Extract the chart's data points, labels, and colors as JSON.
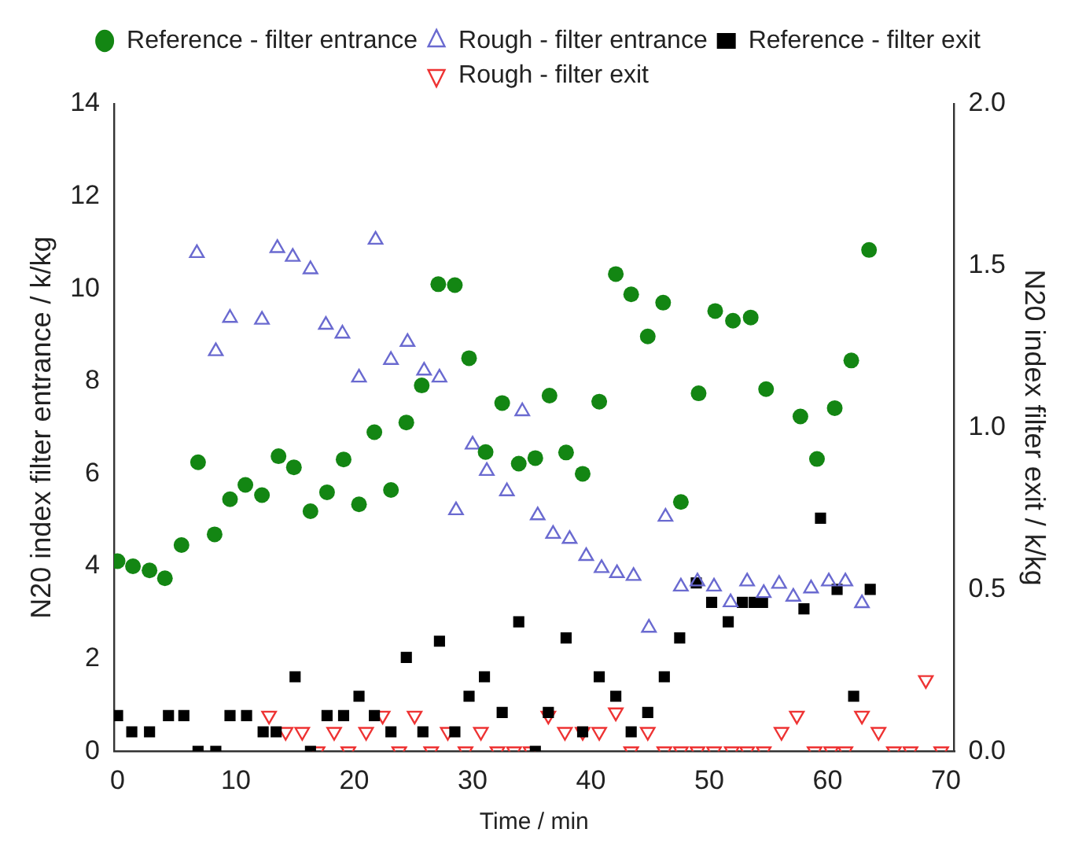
{
  "chart_data": {
    "type": "scatter",
    "xlabel": "Time / min",
    "ylabel": "N20 index filter entrance / k/kg",
    "y2label": "N20 index filter exit / k/kg",
    "xlim": [
      -0.3,
      70.7
    ],
    "xticks": [
      0,
      10,
      20,
      30,
      40,
      50,
      60,
      70
    ],
    "ylim": [
      0,
      14
    ],
    "yticks": [
      0,
      2,
      4,
      6,
      8,
      10,
      12,
      14
    ],
    "y2lim": [
      0,
      2
    ],
    "y2ticks": [
      {
        "value": 0,
        "label": "0.0"
      },
      {
        "value": 0.5,
        "label": "0.5"
      },
      {
        "value": 1,
        "label": "1.0"
      },
      {
        "value": 1.5,
        "label": "1.5"
      },
      {
        "value": 2,
        "label": "2.0"
      }
    ],
    "grid": false,
    "legend": "top",
    "series": [
      {
        "name": "Reference - filter entrance",
        "color": "#138613",
        "marker": "circle",
        "x": [
          0,
          1.3,
          2.7,
          4.0,
          5.4,
          6.8,
          8.2,
          9.5,
          10.8,
          12.2,
          13.6,
          14.9,
          16.3,
          17.7,
          19.1,
          20.4,
          21.7,
          23.1,
          24.4,
          25.7,
          27.1,
          28.5,
          29.7,
          31.1,
          32.5,
          33.9,
          35.3,
          36.5,
          37.9,
          39.3,
          40.7,
          42.1,
          43.4,
          44.8,
          46.1,
          47.6,
          49.1,
          50.5,
          52.0,
          53.5,
          54.8,
          57.7,
          59.1,
          60.6,
          62.0,
          63.5
        ],
        "values": [
          4.11,
          4.0,
          3.91,
          3.74,
          4.46,
          6.25,
          4.69,
          5.45,
          5.76,
          5.54,
          6.38,
          6.14,
          5.19,
          5.6,
          6.31,
          5.34,
          6.9,
          5.65,
          7.11,
          7.91,
          10.1,
          10.08,
          8.5,
          6.47,
          7.53,
          6.22,
          6.34,
          7.69,
          6.46,
          6.0,
          7.56,
          10.32,
          9.88,
          8.97,
          9.7,
          5.39,
          7.74,
          9.52,
          9.31,
          9.38,
          7.83,
          7.24,
          6.32,
          7.42,
          8.45,
          10.84
        ]
      },
      {
        "name": "Rough - filter entrance",
        "color": "#6a6ad0",
        "marker": "triangle",
        "x": [
          6.7,
          8.3,
          9.5,
          12.2,
          13.5,
          14.8,
          16.3,
          17.6,
          19.0,
          20.4,
          21.8,
          23.1,
          24.5,
          25.9,
          27.2,
          28.6,
          30.0,
          31.2,
          32.9,
          34.2,
          35.5,
          36.8,
          38.2,
          39.6,
          40.9,
          42.2,
          43.6,
          44.9,
          46.3,
          47.6,
          49.0,
          50.4,
          51.8,
          53.2,
          54.6,
          55.9,
          57.1,
          58.6,
          60.1,
          61.5,
          62.9
        ],
        "values": [
          10.77,
          8.65,
          9.37,
          9.33,
          10.88,
          10.69,
          10.42,
          9.22,
          9.03,
          8.08,
          11.06,
          8.46,
          8.85,
          8.23,
          8.08,
          5.21,
          6.63,
          6.06,
          5.62,
          7.35,
          5.1,
          4.7,
          4.59,
          4.22,
          3.96,
          3.85,
          3.79,
          2.67,
          5.07,
          3.56,
          3.67,
          3.56,
          3.22,
          3.67,
          3.42,
          3.62,
          3.34,
          3.52,
          3.67,
          3.67,
          3.2
        ]
      },
      {
        "name": "Reference - filter exit",
        "color": "#000000",
        "marker": "square",
        "axis": "y2",
        "x": [
          0,
          1.2,
          2.7,
          4.3,
          5.6,
          6.8,
          8.3,
          9.5,
          10.9,
          12.3,
          13.4,
          15.0,
          16.3,
          17.7,
          19.1,
          20.4,
          21.7,
          23.1,
          24.4,
          25.8,
          27.2,
          28.5,
          29.7,
          31.0,
          32.5,
          33.9,
          35.3,
          36.4,
          37.9,
          39.3,
          40.7,
          42.1,
          43.4,
          44.8,
          46.2,
          47.5,
          48.9,
          50.2,
          51.6,
          52.8,
          53.8,
          54.5,
          58.0,
          59.4,
          60.8,
          62.2,
          63.6
        ],
        "values": [
          0.11,
          0.06,
          0.06,
          0.11,
          0.11,
          0,
          0,
          0.11,
          0.11,
          0.06,
          0.06,
          0.23,
          0,
          0.11,
          0.11,
          0.17,
          0.11,
          0.06,
          0.29,
          0.06,
          0.34,
          0.06,
          0.17,
          0.23,
          0.12,
          0.4,
          0,
          0.12,
          0.35,
          0.06,
          0.23,
          0.17,
          0.06,
          0.12,
          0.23,
          0.35,
          0.52,
          0.46,
          0.4,
          0.46,
          0.46,
          0.46,
          0.44,
          0.72,
          0.5,
          0.17,
          0.5
        ]
      },
      {
        "name": "Rough - filter exit",
        "color": "#ee3333",
        "marker": "triangle_down",
        "axis": "y2",
        "x": [
          12.8,
          14.2,
          15.6,
          16.9,
          18.3,
          19.5,
          21.0,
          22.4,
          23.8,
          25.1,
          26.5,
          27.9,
          29.4,
          30.7,
          32.1,
          33.5,
          34.9,
          36.4,
          37.8,
          39.3,
          40.7,
          42.1,
          43.4,
          44.8,
          46.2,
          47.6,
          49.0,
          50.4,
          51.9,
          53.2,
          54.6,
          56.1,
          57.4,
          58.9,
          60.3,
          61.5,
          62.9,
          64.3,
          65.6,
          67.0,
          68.3,
          69.6
        ],
        "values": [
          0.11,
          0.06,
          0.06,
          0,
          0.06,
          0,
          0.06,
          0.11,
          0,
          0.11,
          0,
          0.06,
          0,
          0.06,
          0,
          0,
          0,
          0.11,
          0.06,
          0.06,
          0.06,
          0.12,
          0,
          0.06,
          0,
          0,
          0,
          0,
          0,
          0,
          0,
          0.06,
          0.11,
          0,
          0,
          0,
          0.11,
          0.06,
          0,
          0,
          0.22,
          0
        ]
      }
    ]
  }
}
